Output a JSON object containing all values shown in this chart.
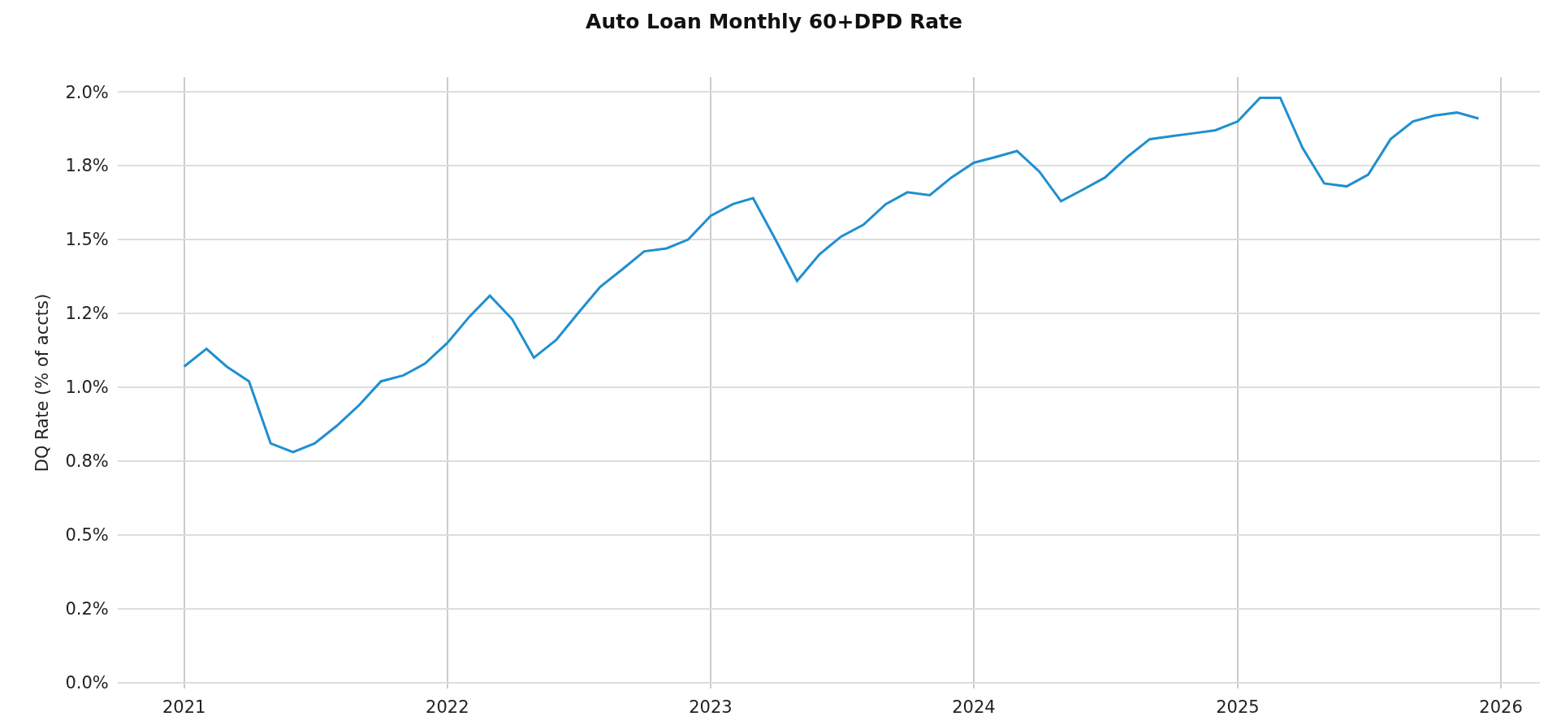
{
  "chart_data": {
    "type": "line",
    "title": "Auto Loan Monthly 60+DPD Rate",
    "ylabel": "DQ Rate (% of accts)",
    "x": [
      "2021-01",
      "2021-02",
      "2021-03",
      "2021-04",
      "2021-05",
      "2021-06",
      "2021-07",
      "2021-08",
      "2021-09",
      "2021-10",
      "2021-11",
      "2021-12",
      "2022-01",
      "2022-02",
      "2022-03",
      "2022-04",
      "2022-05",
      "2022-06",
      "2022-07",
      "2022-08",
      "2022-09",
      "2022-10",
      "2022-11",
      "2022-12",
      "2023-01",
      "2023-02",
      "2023-03",
      "2023-04",
      "2023-05",
      "2023-06",
      "2023-07",
      "2023-08",
      "2023-09",
      "2023-10",
      "2023-11",
      "2023-12",
      "2024-01",
      "2024-02",
      "2024-03",
      "2024-04",
      "2024-05",
      "2024-06",
      "2024-07",
      "2024-08",
      "2024-09",
      "2024-10",
      "2024-11",
      "2024-12",
      "2025-01",
      "2025-02",
      "2025-03",
      "2025-04",
      "2025-05",
      "2025-06",
      "2025-07",
      "2025-08",
      "2025-09",
      "2025-10",
      "2025-11",
      "2025-12"
    ],
    "series": [
      {
        "color": "#1f8fd0",
        "values": [
          1.07,
          1.13,
          1.07,
          1.02,
          0.81,
          0.78,
          0.81,
          0.87,
          0.94,
          1.02,
          1.04,
          1.08,
          1.15,
          1.24,
          1.31,
          1.23,
          1.1,
          1.16,
          1.25,
          1.34,
          1.4,
          1.46,
          1.47,
          1.5,
          1.58,
          1.62,
          1.64,
          1.5,
          1.36,
          1.45,
          1.51,
          1.55,
          1.62,
          1.66,
          1.65,
          1.71,
          1.76,
          1.78,
          1.8,
          1.73,
          1.63,
          1.67,
          1.71,
          1.78,
          1.84,
          1.85,
          1.86,
          1.87,
          1.9,
          1.98,
          1.98,
          1.81,
          1.69,
          1.68,
          1.72,
          1.84,
          1.9,
          1.92,
          1.93,
          1.91
        ]
      }
    ],
    "xlim": [
      "2020-10-01",
      "2026-02-24"
    ],
    "xticks": [
      {
        "value": "2021-01-01",
        "label": "2021"
      },
      {
        "value": "2022-01-01",
        "label": "2022"
      },
      {
        "value": "2023-01-01",
        "label": "2023"
      },
      {
        "value": "2024-01-01",
        "label": "2024"
      },
      {
        "value": "2025-01-01",
        "label": "2025"
      },
      {
        "value": "2026-01-01",
        "label": "2026"
      }
    ],
    "ylim": [
      -0.02,
      2.05
    ],
    "yticks": [
      {
        "value": 0,
        "label": "0.0%"
      },
      {
        "value": 0.25,
        "label": "0.2%"
      },
      {
        "value": 0.5,
        "label": "0.5%"
      },
      {
        "value": 0.75,
        "label": "0.8%"
      },
      {
        "value": 1.0,
        "label": "1.0%"
      },
      {
        "value": 1.25,
        "label": "1.2%"
      },
      {
        "value": 1.5,
        "label": "1.5%"
      },
      {
        "value": 1.75,
        "label": "1.8%"
      },
      {
        "value": 2.0,
        "label": "2.0%"
      }
    ],
    "grid": true
  }
}
